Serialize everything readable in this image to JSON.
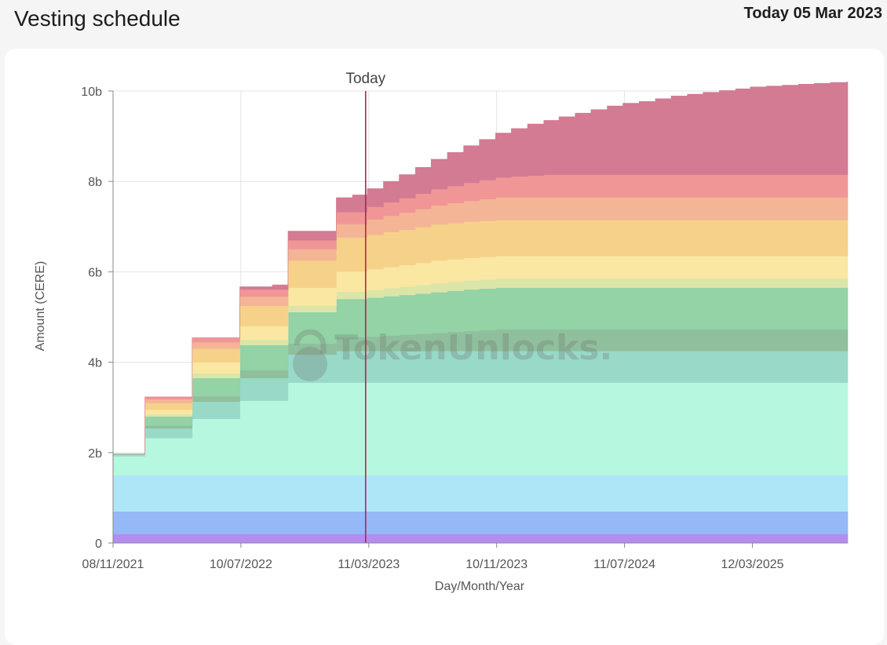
{
  "header": {
    "title": "Vesting schedule",
    "today_label": "Today 05 Mar 2023"
  },
  "watermark": "TokenUnlocks.",
  "chart_data": {
    "type": "area",
    "xlabel": "Day/Month/Year",
    "ylabel": "Amount (CERE)",
    "ylim": [
      0,
      10
    ],
    "y_ticks": [
      "0",
      "2b",
      "4b",
      "6b",
      "8b",
      "10b"
    ],
    "x_ticks": [
      "08/11/2021",
      "10/07/2022",
      "11/03/2023",
      "10/11/2023",
      "11/07/2024",
      "12/03/2025"
    ],
    "x_tick_dates": [
      "2021-11-08",
      "2022-07-10",
      "2023-03-11",
      "2023-11-10",
      "2024-07-11",
      "2025-03-12"
    ],
    "x_range": [
      "2021-11-08",
      "2025-09-10"
    ],
    "today": {
      "date": "2023-03-05",
      "label": "Today"
    },
    "grid": true,
    "stacked": true,
    "dates": [
      "2021-11-08",
      "2021-12-08",
      "2022-01-08",
      "2022-02-08",
      "2022-03-08",
      "2022-04-08",
      "2022-05-08",
      "2022-06-08",
      "2022-07-08",
      "2022-08-08",
      "2022-09-08",
      "2022-10-08",
      "2022-11-08",
      "2022-12-08",
      "2023-01-08",
      "2023-02-08",
      "2023-03-08",
      "2023-04-08",
      "2023-05-08",
      "2023-06-08",
      "2023-07-08",
      "2023-08-08",
      "2023-09-08",
      "2023-10-08",
      "2023-11-08",
      "2023-12-08",
      "2024-01-08",
      "2024-02-08",
      "2024-03-08",
      "2024-04-08",
      "2024-05-08",
      "2024-06-08",
      "2024-07-08",
      "2024-08-08",
      "2024-09-08",
      "2024-10-08",
      "2024-11-08",
      "2024-12-08",
      "2025-01-08",
      "2025-02-08",
      "2025-03-08",
      "2025-04-08",
      "2025-05-08",
      "2025-06-08",
      "2025-07-08",
      "2025-08-08",
      "2025-09-08"
    ],
    "series": [
      {
        "color": "#b48cf2",
        "values": [
          0.2,
          0.2,
          0.2,
          0.2,
          0.2,
          0.2,
          0.2,
          0.2,
          0.2,
          0.2,
          0.2,
          0.2,
          0.2,
          0.2,
          0.2,
          0.2,
          0.2,
          0.2,
          0.2,
          0.2,
          0.2,
          0.2,
          0.2,
          0.2,
          0.2,
          0.2,
          0.2,
          0.2,
          0.2,
          0.2,
          0.2,
          0.2,
          0.2,
          0.2,
          0.2,
          0.2,
          0.2,
          0.2,
          0.2,
          0.2,
          0.2,
          0.2,
          0.2,
          0.2,
          0.2,
          0.2,
          0.2
        ]
      },
      {
        "color": "#95b8f7",
        "values": [
          0.5,
          0.5,
          0.5,
          0.5,
          0.5,
          0.5,
          0.5,
          0.5,
          0.5,
          0.5,
          0.5,
          0.5,
          0.5,
          0.5,
          0.5,
          0.5,
          0.5,
          0.5,
          0.5,
          0.5,
          0.5,
          0.5,
          0.5,
          0.5,
          0.5,
          0.5,
          0.5,
          0.5,
          0.5,
          0.5,
          0.5,
          0.5,
          0.5,
          0.5,
          0.5,
          0.5,
          0.5,
          0.5,
          0.5,
          0.5,
          0.5,
          0.5,
          0.5,
          0.5,
          0.5,
          0.5,
          0.5
        ]
      },
      {
        "color": "#aee6f8",
        "values": [
          0.8,
          0.8,
          0.8,
          0.8,
          0.8,
          0.8,
          0.8,
          0.8,
          0.8,
          0.8,
          0.8,
          0.8,
          0.8,
          0.8,
          0.8,
          0.8,
          0.8,
          0.8,
          0.8,
          0.8,
          0.8,
          0.8,
          0.8,
          0.8,
          0.8,
          0.8,
          0.8,
          0.8,
          0.8,
          0.8,
          0.8,
          0.8,
          0.8,
          0.8,
          0.8,
          0.8,
          0.8,
          0.8,
          0.8,
          0.8,
          0.8,
          0.8,
          0.8,
          0.8,
          0.8,
          0.8,
          0.8
        ]
      },
      {
        "color": "#b6f7df",
        "values": [
          0.42,
          0.42,
          0.82,
          0.82,
          0.82,
          1.25,
          1.25,
          1.25,
          1.65,
          1.65,
          1.65,
          2.05,
          2.05,
          2.05,
          2.05,
          2.05,
          2.05,
          2.05,
          2.05,
          2.05,
          2.05,
          2.05,
          2.05,
          2.05,
          2.05,
          2.05,
          2.05,
          2.05,
          2.05,
          2.05,
          2.05,
          2.05,
          2.05,
          2.05,
          2.05,
          2.05,
          2.05,
          2.05,
          2.05,
          2.05,
          2.05,
          2.05,
          2.05,
          2.05,
          2.05,
          2.05,
          2.05
        ]
      },
      {
        "color": "#98d9c8",
        "values": [
          0.05,
          0.05,
          0.22,
          0.22,
          0.22,
          0.38,
          0.38,
          0.38,
          0.5,
          0.5,
          0.5,
          0.62,
          0.62,
          0.62,
          0.7,
          0.7,
          0.7,
          0.7,
          0.7,
          0.7,
          0.7,
          0.7,
          0.7,
          0.7,
          0.7,
          0.7,
          0.7,
          0.7,
          0.7,
          0.7,
          0.7,
          0.7,
          0.7,
          0.7,
          0.7,
          0.7,
          0.7,
          0.7,
          0.7,
          0.7,
          0.7,
          0.7,
          0.7,
          0.7,
          0.7,
          0.7,
          0.7
        ]
      },
      {
        "color": "#8fbf9d",
        "values": [
          0,
          0,
          0.06,
          0.06,
          0.06,
          0.12,
          0.12,
          0.12,
          0.18,
          0.18,
          0.18,
          0.24,
          0.24,
          0.24,
          0.3,
          0.3,
          0.32,
          0.34,
          0.36,
          0.38,
          0.4,
          0.42,
          0.44,
          0.46,
          0.48,
          0.48,
          0.48,
          0.48,
          0.48,
          0.48,
          0.48,
          0.48,
          0.48,
          0.48,
          0.48,
          0.48,
          0.48,
          0.48,
          0.48,
          0.48,
          0.48,
          0.48,
          0.48,
          0.48,
          0.48,
          0.48,
          0.48
        ]
      },
      {
        "color": "#93d3a6",
        "values": [
          0,
          0,
          0.2,
          0.2,
          0.2,
          0.4,
          0.4,
          0.4,
          0.55,
          0.55,
          0.55,
          0.7,
          0.7,
          0.7,
          0.85,
          0.85,
          0.86,
          0.87,
          0.88,
          0.89,
          0.9,
          0.91,
          0.92,
          0.92,
          0.92,
          0.92,
          0.92,
          0.92,
          0.92,
          0.92,
          0.92,
          0.92,
          0.92,
          0.92,
          0.92,
          0.92,
          0.92,
          0.92,
          0.92,
          0.92,
          0.92,
          0.92,
          0.92,
          0.92,
          0.92,
          0.92,
          0.92
        ]
      },
      {
        "color": "#dbe5a8",
        "values": [
          0,
          0,
          0.05,
          0.05,
          0.05,
          0.1,
          0.1,
          0.1,
          0.12,
          0.12,
          0.12,
          0.14,
          0.14,
          0.14,
          0.16,
          0.16,
          0.17,
          0.18,
          0.18,
          0.19,
          0.2,
          0.2,
          0.2,
          0.2,
          0.2,
          0.2,
          0.2,
          0.2,
          0.2,
          0.2,
          0.2,
          0.2,
          0.2,
          0.2,
          0.2,
          0.2,
          0.2,
          0.2,
          0.2,
          0.2,
          0.2,
          0.2,
          0.2,
          0.2,
          0.2,
          0.2,
          0.2
        ]
      },
      {
        "color": "#f9e7a2",
        "values": [
          0,
          0,
          0.1,
          0.1,
          0.1,
          0.25,
          0.25,
          0.25,
          0.3,
          0.3,
          0.3,
          0.4,
          0.4,
          0.4,
          0.45,
          0.45,
          0.46,
          0.47,
          0.48,
          0.49,
          0.5,
          0.5,
          0.5,
          0.5,
          0.5,
          0.5,
          0.5,
          0.5,
          0.5,
          0.5,
          0.5,
          0.5,
          0.5,
          0.5,
          0.5,
          0.5,
          0.5,
          0.5,
          0.5,
          0.5,
          0.5,
          0.5,
          0.5,
          0.5,
          0.5,
          0.5,
          0.5
        ]
      },
      {
        "color": "#f6d18a",
        "values": [
          0,
          0,
          0.15,
          0.15,
          0.15,
          0.3,
          0.3,
          0.3,
          0.45,
          0.45,
          0.45,
          0.6,
          0.6,
          0.6,
          0.75,
          0.75,
          0.76,
          0.77,
          0.78,
          0.79,
          0.8,
          0.8,
          0.8,
          0.8,
          0.8,
          0.8,
          0.8,
          0.8,
          0.8,
          0.8,
          0.8,
          0.8,
          0.8,
          0.8,
          0.8,
          0.8,
          0.8,
          0.8,
          0.8,
          0.8,
          0.8,
          0.8,
          0.8,
          0.8,
          0.8,
          0.8,
          0.8
        ]
      },
      {
        "color": "#f4b596",
        "values": [
          0,
          0,
          0.08,
          0.08,
          0.08,
          0.14,
          0.14,
          0.14,
          0.2,
          0.2,
          0.2,
          0.25,
          0.25,
          0.25,
          0.3,
          0.3,
          0.34,
          0.36,
          0.38,
          0.4,
          0.42,
          0.44,
          0.46,
          0.48,
          0.5,
          0.5,
          0.5,
          0.5,
          0.5,
          0.5,
          0.5,
          0.5,
          0.5,
          0.5,
          0.5,
          0.5,
          0.5,
          0.5,
          0.5,
          0.5,
          0.5,
          0.5,
          0.5,
          0.5,
          0.5,
          0.5,
          0.5
        ]
      },
      {
        "color": "#f19696",
        "values": [
          0,
          0,
          0.05,
          0.05,
          0.05,
          0.1,
          0.1,
          0.1,
          0.16,
          0.16,
          0.16,
          0.2,
          0.2,
          0.2,
          0.26,
          0.26,
          0.28,
          0.3,
          0.32,
          0.34,
          0.36,
          0.38,
          0.4,
          0.42,
          0.44,
          0.46,
          0.48,
          0.5,
          0.5,
          0.5,
          0.5,
          0.5,
          0.5,
          0.5,
          0.5,
          0.5,
          0.5,
          0.5,
          0.5,
          0.5,
          0.5,
          0.5,
          0.5,
          0.5,
          0.5,
          0.5,
          0.5
        ]
      },
      {
        "color": "#d27b93",
        "values": [
          0,
          0,
          0,
          0,
          0,
          0,
          0,
          0,
          0.06,
          0.06,
          0.1,
          0.2,
          0.2,
          0.2,
          0.32,
          0.38,
          0.4,
          0.46,
          0.52,
          0.58,
          0.66,
          0.74,
          0.82,
          0.9,
          0.98,
          1.06,
          1.14,
          1.2,
          1.28,
          1.36,
          1.44,
          1.52,
          1.58,
          1.62,
          1.68,
          1.74,
          1.78,
          1.82,
          1.86,
          1.9,
          1.94,
          1.96,
          1.98,
          2.0,
          2.02,
          2.04,
          2.05
        ]
      }
    ]
  }
}
